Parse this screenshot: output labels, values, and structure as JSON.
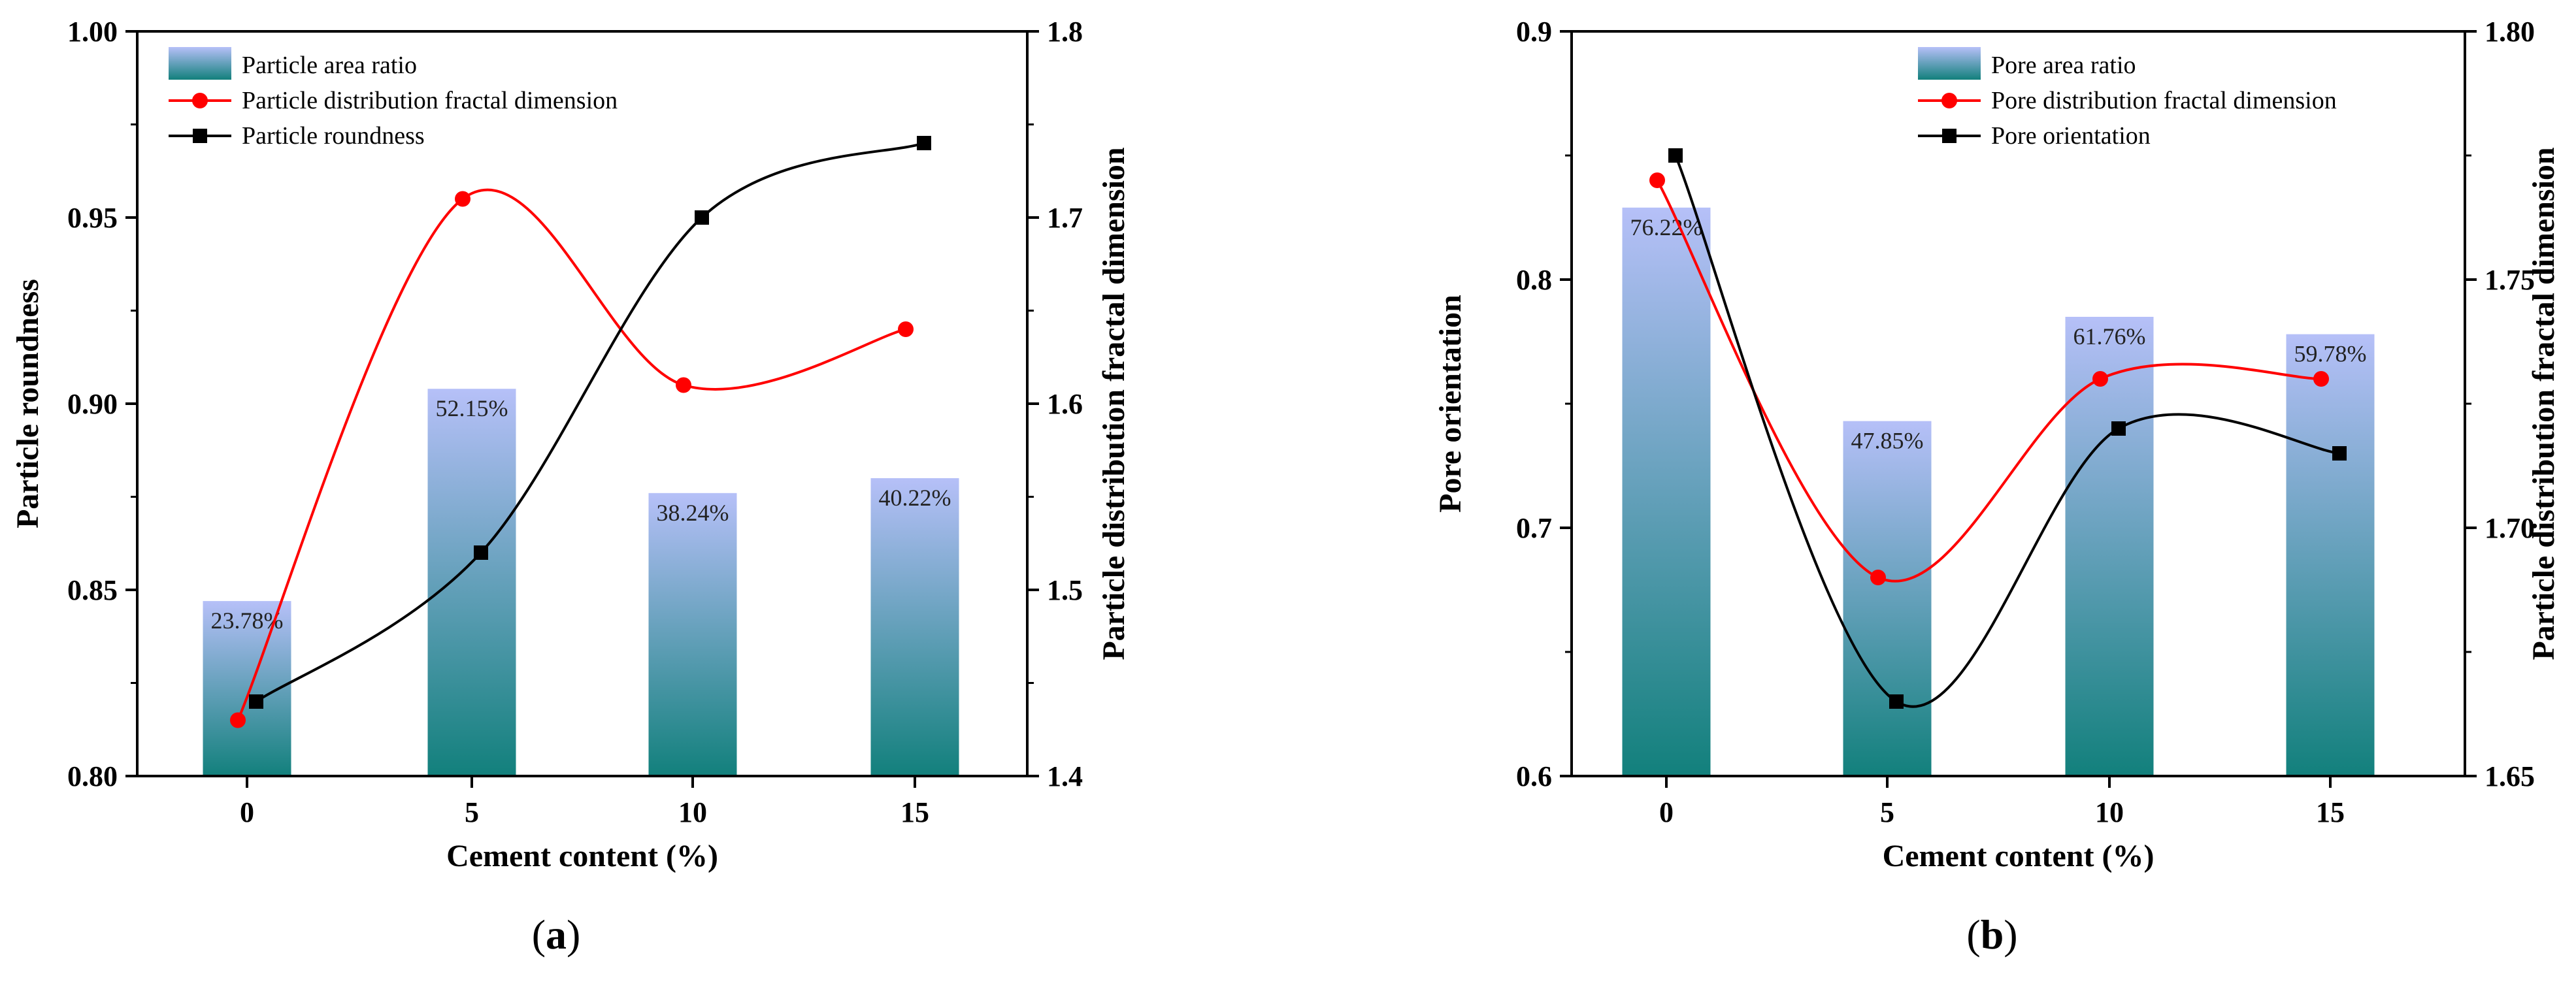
{
  "colors": {
    "bar_top": "#b6c0f8",
    "bar_bottom": "#12807c",
    "red_line": "#ff0000",
    "black_line": "#000000"
  },
  "chart_data": [
    {
      "type": "bar+line",
      "panel_label": "a",
      "categories": [
        "0",
        "5",
        "10",
        "15"
      ],
      "xlabel": "Cement content (%)",
      "ylabel_left": "Particle roundness",
      "ylabel_right": "Particle distribution fractal dimension",
      "ylim_left": [
        0.8,
        1.0
      ],
      "yticks_left": [
        "0.80",
        "0.85",
        "0.90",
        "0.95",
        "1.00"
      ],
      "ylim_right": [
        1.4,
        1.8
      ],
      "yticks_right": [
        "1.4",
        "1.5",
        "1.6",
        "1.7",
        "1.8"
      ],
      "bars": {
        "name": "Particle area ratio",
        "values": [
          0.847,
          0.904,
          0.876,
          0.88
        ],
        "labels": [
          "23.78%",
          "52.15%",
          "38.24%",
          "40.22%"
        ]
      },
      "series": [
        {
          "name": "Particle distribution fractal dimension",
          "axis": "right",
          "marker": "circle",
          "color": "#ff0000",
          "values": [
            1.43,
            1.71,
            1.61,
            1.64
          ]
        },
        {
          "name": "Particle roundness",
          "axis": "left",
          "marker": "square",
          "color": "#000000",
          "values": [
            0.82,
            0.86,
            0.95,
            0.97
          ]
        }
      ],
      "legend": [
        "Particle area ratio",
        "Particle distribution fractal dimension",
        "Particle roundness"
      ],
      "legend_position": "top-left"
    },
    {
      "type": "bar+line",
      "panel_label": "b",
      "categories": [
        "0",
        "5",
        "10",
        "15"
      ],
      "xlabel": "Cement content (%)",
      "ylabel_left": "Pore orientation",
      "ylabel_right": "Particle distribution fractal dimension",
      "ylim_left": [
        0.6,
        0.9
      ],
      "yticks_left": [
        "0.6",
        "0.7",
        "0.8",
        "0.9"
      ],
      "ylim_right": [
        1.65,
        1.8
      ],
      "yticks_right": [
        "1.65",
        "1.70",
        "1.75",
        "1.80"
      ],
      "bars": {
        "name": "Pore area ratio",
        "values": [
          0.829,
          0.743,
          0.785,
          0.778
        ],
        "labels": [
          "76.22%",
          "47.85%",
          "61.76%",
          "59.78%"
        ]
      },
      "series": [
        {
          "name": "Pore distribution fractal dimension",
          "axis": "right",
          "marker": "circle",
          "color": "#ff0000",
          "values": [
            1.77,
            1.69,
            1.73,
            1.73
          ]
        },
        {
          "name": "Pore orientation",
          "axis": "left",
          "marker": "square",
          "color": "#000000",
          "values": [
            0.85,
            0.63,
            0.74,
            0.73
          ]
        }
      ],
      "legend": [
        "Pore area ratio",
        "Pore distribution fractal dimension",
        "Pore orientation"
      ],
      "legend_position": "top-right"
    }
  ]
}
